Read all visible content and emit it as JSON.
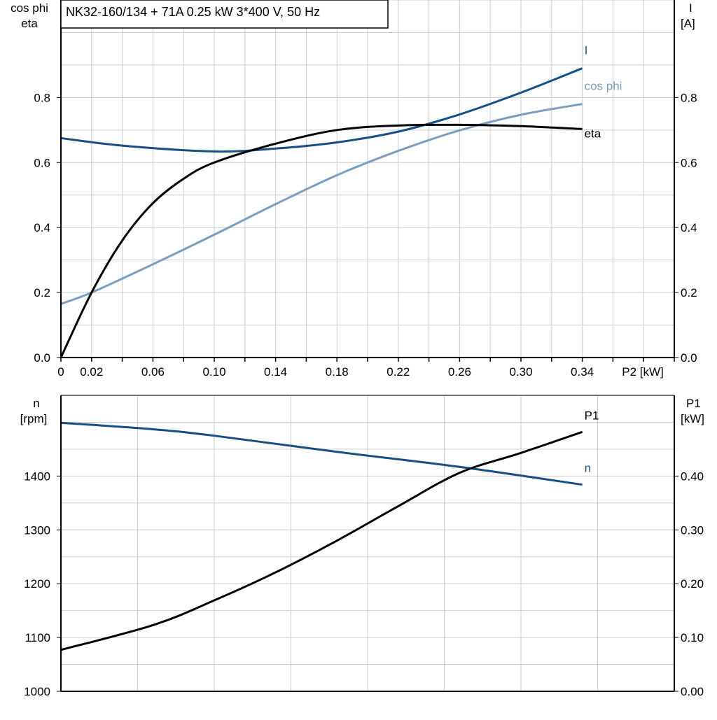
{
  "title": "NK32-160/134 + 71A   0.25 kW   3*400 V, 50 Hz",
  "colors": {
    "I": "#154f85",
    "cos_phi": "#7a9cc0",
    "eta": "#000000",
    "n": "#154f85",
    "P1": "#000000",
    "grid": "#cccccc"
  },
  "chart_data": [
    {
      "type": "line",
      "xlabel": "P2 [kW]",
      "ylabel_left": [
        "cos phi",
        "eta"
      ],
      "ylabel_right": [
        "I",
        "[A]"
      ],
      "xlim": [
        0,
        0.4
      ],
      "ylim": [
        0,
        1.1
      ],
      "x_ticks": [
        "0",
        "0.02",
        "0.06",
        "0.10",
        "0.14",
        "0.18",
        "0.22",
        "0.26",
        "0.30",
        "0.34"
      ],
      "y_ticks_left": [
        "0.0",
        "0.2",
        "0.4",
        "0.6",
        "0.8"
      ],
      "y_ticks_right": [
        "0.0",
        "0.2",
        "0.4",
        "0.6",
        "0.8"
      ],
      "grid": true,
      "series": [
        {
          "name": "I",
          "color_key": "I",
          "x": [
            0,
            0.04,
            0.1,
            0.14,
            0.18,
            0.22,
            0.26,
            0.3,
            0.34
          ],
          "y": [
            0.675,
            0.652,
            0.634,
            0.643,
            0.662,
            0.695,
            0.748,
            0.815,
            0.89
          ]
        },
        {
          "name": "cos phi",
          "color_key": "cos_phi",
          "x": [
            0,
            0.02,
            0.06,
            0.1,
            0.14,
            0.18,
            0.22,
            0.26,
            0.3,
            0.34
          ],
          "y": [
            0.165,
            0.2,
            0.287,
            0.378,
            0.472,
            0.561,
            0.636,
            0.699,
            0.747,
            0.78
          ]
        },
        {
          "name": "eta",
          "color_key": "eta",
          "x": [
            0,
            0.02,
            0.04,
            0.06,
            0.08,
            0.1,
            0.14,
            0.18,
            0.22,
            0.26,
            0.3,
            0.34
          ],
          "y": [
            0,
            0.2,
            0.36,
            0.475,
            0.55,
            0.6,
            0.658,
            0.7,
            0.714,
            0.716,
            0.712,
            0.703
          ]
        }
      ]
    },
    {
      "type": "line",
      "ylabel_left": [
        "n",
        "[rpm]"
      ],
      "ylabel_right": [
        "P1",
        "[kW]"
      ],
      "xlim": [
        0,
        0.4
      ],
      "ylim_left": [
        1000,
        1550
      ],
      "ylim_right": [
        0,
        0.55
      ],
      "y_ticks_left": [
        "1000",
        "1100",
        "1200",
        "1300",
        "1400"
      ],
      "y_ticks_right": [
        "0.00",
        "0.10",
        "0.20",
        "0.30",
        "0.40"
      ],
      "grid": true,
      "series": [
        {
          "name": "n",
          "axis": "left",
          "color_key": "n",
          "x": [
            0,
            0.06,
            0.1,
            0.18,
            0.26,
            0.34
          ],
          "y": [
            1499,
            1487,
            1475,
            1445,
            1417,
            1384
          ]
        },
        {
          "name": "P1",
          "axis": "right",
          "color_key": "P1",
          "x": [
            0,
            0.06,
            0.1,
            0.14,
            0.18,
            0.22,
            0.26,
            0.3,
            0.34
          ],
          "y": [
            0.077,
            0.123,
            0.169,
            0.221,
            0.28,
            0.344,
            0.406,
            0.443,
            0.482
          ]
        }
      ]
    }
  ]
}
